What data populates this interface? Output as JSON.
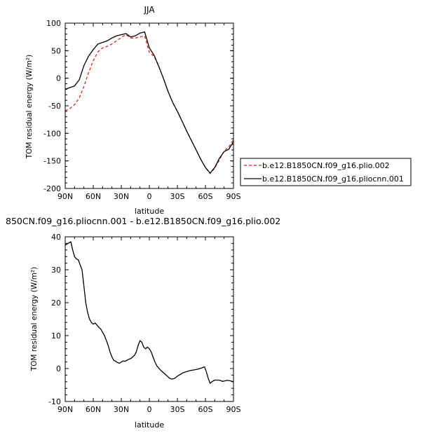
{
  "chart_data": [
    {
      "type": "line",
      "title": "JJA",
      "xlabel": "latitude",
      "ylabel": "TOM residual energy (W/m²)",
      "xlim": [
        90,
        -90
      ],
      "ylim": [
        -200,
        100
      ],
      "x_tick_labels": [
        "90N",
        "60N",
        "30N",
        "0",
        "30S",
        "60S",
        "90S"
      ],
      "x_ticks": [
        90,
        60,
        30,
        0,
        -30,
        -60,
        -90
      ],
      "y_ticks": [
        -200,
        -150,
        -100,
        -50,
        0,
        50,
        100
      ],
      "legend_position": "right",
      "x": [
        90,
        85,
        80,
        75,
        70,
        65,
        60,
        55,
        50,
        45,
        40,
        35,
        30,
        25,
        20,
        15,
        10,
        5,
        0,
        -5,
        -10,
        -15,
        -20,
        -25,
        -30,
        -35,
        -40,
        -45,
        -50,
        -55,
        -60,
        -65,
        -70,
        -75,
        -80,
        -85,
        -90
      ],
      "series": [
        {
          "name": "b.e12.B1850CN.f09_g16.plio.002",
          "color": "#e8211f",
          "dash": "dashed",
          "values": [
            -59,
            -55,
            -48,
            -36,
            -15,
            10,
            32,
            48,
            55,
            58,
            62,
            68,
            74,
            79,
            73,
            73,
            75,
            77,
            47,
            40,
            22,
            0,
            -24,
            -44,
            -60,
            -78,
            -96,
            -113,
            -130,
            -147,
            -162,
            -173,
            -163,
            -148,
            -132,
            -125,
            -111
          ]
        },
        {
          "name": "b.e12.B1850CN.f09_g16.pliocnn.001",
          "color": "#000000",
          "dash": "solid",
          "values": [
            -20,
            -17,
            -14,
            -3,
            23,
            40,
            52,
            62,
            65,
            68,
            73,
            77,
            79,
            81,
            75,
            77,
            82,
            84,
            55,
            42,
            22,
            0,
            -24,
            -44,
            -60,
            -78,
            -96,
            -113,
            -130,
            -147,
            -162,
            -172,
            -162,
            -145,
            -133,
            -129,
            -115
          ]
        }
      ]
    },
    {
      "type": "line",
      "title": "850CN.f09_g16.pliocnn.001 - b.e12.B1850CN.f09_g16.plio.002",
      "xlabel": "latitude",
      "ylabel": "TOM residual energy (W/m²)",
      "xlim": [
        90,
        -90
      ],
      "ylim": [
        -10,
        40
      ],
      "x_tick_labels": [
        "90N",
        "60N",
        "30N",
        "0",
        "30S",
        "60S",
        "90S"
      ],
      "x_ticks": [
        90,
        60,
        30,
        0,
        -30,
        -60,
        -90
      ],
      "y_ticks": [
        -10,
        0,
        10,
        20,
        30,
        40
      ],
      "x": [
        90,
        87,
        84,
        82,
        80,
        78,
        76,
        74,
        72,
        70,
        68,
        66,
        64,
        62,
        60,
        58,
        56,
        54,
        52,
        50,
        48,
        46,
        44,
        42,
        40,
        38,
        36,
        34,
        32,
        30,
        28,
        26,
        24,
        22,
        20,
        18,
        16,
        14,
        12,
        10,
        8,
        6,
        4,
        2,
        0,
        -2,
        -4,
        -6,
        -8,
        -10,
        -12,
        -14,
        -16,
        -18,
        -20,
        -22,
        -24,
        -26,
        -28,
        -30,
        -33,
        -36,
        -40,
        -44,
        -48,
        -52,
        -56,
        -59,
        -61,
        -63,
        -65,
        -67,
        -70,
        -73,
        -76,
        -78,
        -80,
        -83,
        -86,
        -90
      ],
      "series": [
        {
          "name": "",
          "color": "#000000",
          "dash": "solid",
          "values": [
            37.5,
            38.0,
            38.5,
            36.0,
            34.0,
            33.3,
            33.0,
            31.5,
            30.0,
            25.0,
            20.0,
            17.0,
            15.0,
            14.0,
            13.5,
            13.8,
            13.2,
            12.5,
            12.0,
            11.0,
            10.0,
            8.5,
            7.0,
            5.0,
            3.5,
            2.5,
            2.2,
            1.8,
            1.6,
            2.0,
            2.3,
            2.2,
            2.5,
            2.8,
            3.0,
            3.5,
            4.0,
            5.0,
            7.0,
            8.5,
            8.0,
            6.5,
            6.0,
            6.5,
            6.0,
            5.0,
            3.5,
            2.0,
            0.8,
            0.2,
            -0.5,
            -1.0,
            -1.5,
            -2.0,
            -2.5,
            -3.0,
            -3.2,
            -3.1,
            -2.8,
            -2.3,
            -1.8,
            -1.3,
            -0.9,
            -0.6,
            -0.4,
            -0.2,
            0.2,
            0.5,
            -1.0,
            -3.0,
            -4.5,
            -4.0,
            -3.5,
            -3.5,
            -3.6,
            -3.9,
            -3.8,
            -3.6,
            -3.7,
            -4.0
          ]
        }
      ]
    }
  ]
}
